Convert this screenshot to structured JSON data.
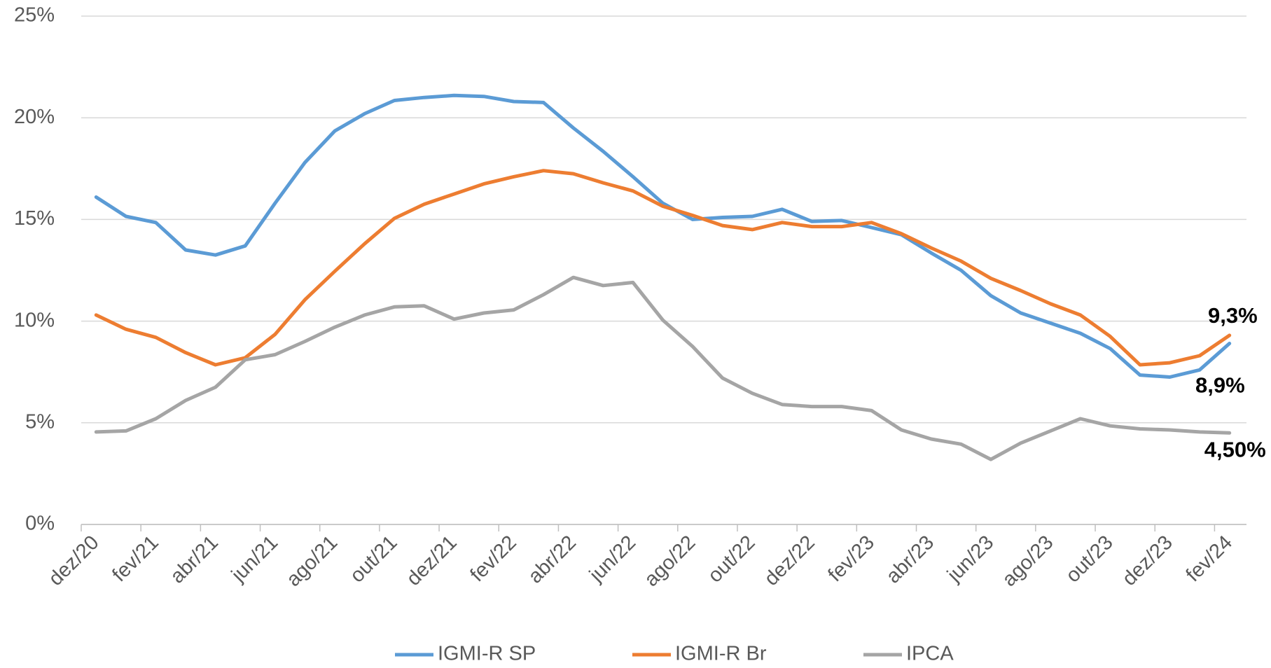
{
  "chart_data": {
    "type": "line",
    "categories": [
      "dez/20",
      null,
      "fev/21",
      null,
      "abr/21",
      null,
      "jun/21",
      null,
      "ago/21",
      null,
      "out/21",
      null,
      "dez/21",
      null,
      "fev/22",
      null,
      "abr/22",
      null,
      "jun/22",
      null,
      "ago/22",
      null,
      "out/22",
      null,
      "dez/22",
      null,
      "fev/23",
      null,
      "abr/23",
      null,
      "jun/23",
      null,
      "ago/23",
      null,
      "out/23",
      null,
      "dez/23",
      null,
      "fev/24"
    ],
    "series": [
      {
        "name": "IGMI-R SP",
        "color": "#5b9bd5",
        "values": [
          16.1,
          15.15,
          14.85,
          13.5,
          13.25,
          13.7,
          15.8,
          17.8,
          19.35,
          20.2,
          20.85,
          21.0,
          21.1,
          21.05,
          20.8,
          20.75,
          19.5,
          18.35,
          17.1,
          15.8,
          15.0,
          15.1,
          15.15,
          15.5,
          14.9,
          14.95,
          14.6,
          14.25,
          13.35,
          12.5,
          11.25,
          10.4,
          9.9,
          9.4,
          8.65,
          7.35,
          7.25,
          7.6,
          8.9
        ],
        "value_labels": [
          null,
          null,
          null,
          null,
          null,
          null,
          null,
          null,
          null,
          null,
          null,
          null,
          null,
          null,
          null,
          null,
          null,
          null,
          null,
          null,
          null,
          null,
          null,
          null,
          null,
          null,
          null,
          null,
          null,
          null,
          null,
          null,
          null,
          null,
          null,
          null,
          null,
          null,
          "8,9%"
        ]
      },
      {
        "name": "IGMI-R Br",
        "color": "#ed7d31",
        "values": [
          10.3,
          9.6,
          9.2,
          8.45,
          7.85,
          8.2,
          9.35,
          11.05,
          12.45,
          13.8,
          15.05,
          15.75,
          16.25,
          16.75,
          17.1,
          17.4,
          17.25,
          16.8,
          16.4,
          15.65,
          15.2,
          14.7,
          14.5,
          14.85,
          14.65,
          14.65,
          14.85,
          14.3,
          13.6,
          12.95,
          12.1,
          11.5,
          10.85,
          10.3,
          9.25,
          7.85,
          7.95,
          8.3,
          9.3
        ],
        "value_labels": [
          null,
          null,
          null,
          null,
          null,
          null,
          null,
          null,
          null,
          null,
          null,
          null,
          null,
          null,
          null,
          null,
          null,
          null,
          null,
          null,
          null,
          null,
          null,
          null,
          null,
          null,
          null,
          null,
          null,
          null,
          null,
          null,
          null,
          null,
          null,
          null,
          null,
          null,
          "9,3%"
        ]
      },
      {
        "name": "IPCA",
        "color": "#a5a5a5",
        "values": [
          4.55,
          4.6,
          5.2,
          6.1,
          6.75,
          8.1,
          8.35,
          9.0,
          9.7,
          10.3,
          10.7,
          10.75,
          10.1,
          10.4,
          10.55,
          11.3,
          12.15,
          11.75,
          11.9,
          10.05,
          8.75,
          7.2,
          6.45,
          5.9,
          5.8,
          5.8,
          5.6,
          4.65,
          4.2,
          3.95,
          3.2,
          4.0,
          4.6,
          5.2,
          4.85,
          4.7,
          4.65,
          4.55,
          4.5
        ],
        "value_labels": [
          null,
          null,
          null,
          null,
          null,
          null,
          null,
          null,
          null,
          null,
          null,
          null,
          null,
          null,
          null,
          null,
          null,
          null,
          null,
          null,
          null,
          null,
          null,
          null,
          null,
          null,
          null,
          null,
          null,
          null,
          null,
          null,
          null,
          null,
          null,
          null,
          null,
          null,
          "4,50%"
        ]
      }
    ],
    "ylim": [
      0,
      25
    ],
    "yticks": [
      {
        "value": 0,
        "label": "0%"
      },
      {
        "value": 5,
        "label": "5%"
      },
      {
        "value": 10,
        "label": "10%"
      },
      {
        "value": 15,
        "label": "15%"
      },
      {
        "value": 20,
        "label": "20%"
      },
      {
        "value": 25,
        "label": "25%"
      }
    ],
    "grid": true,
    "legend": "bottom"
  }
}
